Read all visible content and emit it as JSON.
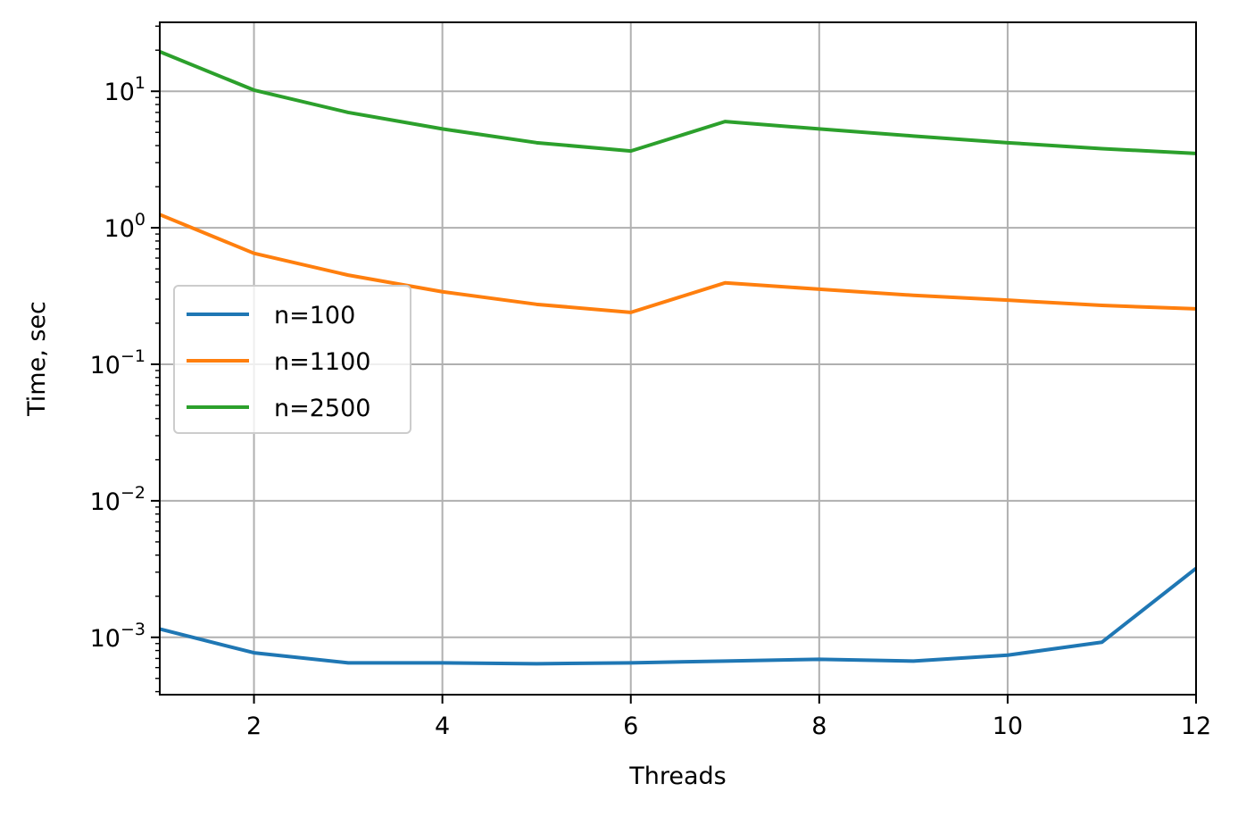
{
  "chart_data": {
    "type": "line",
    "title": "",
    "xlabel": "Threads",
    "ylabel": "Time, sec",
    "yscale": "log",
    "xlim": [
      1,
      12
    ],
    "ylim": [
      0.00038,
      32
    ],
    "grid": true,
    "legend_position": "center-left",
    "x": [
      1,
      2,
      3,
      4,
      5,
      6,
      7,
      8,
      9,
      10,
      11,
      12
    ],
    "x_ticks": [
      {
        "value": 2,
        "label": "2"
      },
      {
        "value": 4,
        "label": "4"
      },
      {
        "value": 6,
        "label": "6"
      },
      {
        "value": 8,
        "label": "8"
      },
      {
        "value": 10,
        "label": "10"
      },
      {
        "value": 12,
        "label": "12"
      }
    ],
    "y_ticks": [
      {
        "value": 0.001,
        "base": "10",
        "exp": "−3"
      },
      {
        "value": 0.01,
        "base": "10",
        "exp": "−2"
      },
      {
        "value": 0.1,
        "base": "10",
        "exp": "−1"
      },
      {
        "value": 1,
        "base": "10",
        "exp": "0"
      },
      {
        "value": 10,
        "base": "10",
        "exp": "1"
      }
    ],
    "series": [
      {
        "name": "n=100",
        "color": "#1f77b4",
        "values": [
          0.00115,
          0.00077,
          0.00065,
          0.00065,
          0.00064,
          0.00065,
          0.00067,
          0.00069,
          0.00067,
          0.00074,
          0.00092,
          0.0032
        ]
      },
      {
        "name": "n=1100",
        "color": "#ff7f0e",
        "values": [
          1.25,
          0.65,
          0.45,
          0.34,
          0.275,
          0.24,
          0.395,
          0.355,
          0.32,
          0.295,
          0.27,
          0.255
        ]
      },
      {
        "name": "n=2500",
        "color": "#2ca02c",
        "values": [
          19.5,
          10.2,
          7.0,
          5.3,
          4.2,
          3.65,
          6.0,
          5.3,
          4.7,
          4.2,
          3.8,
          3.5
        ]
      }
    ]
  }
}
